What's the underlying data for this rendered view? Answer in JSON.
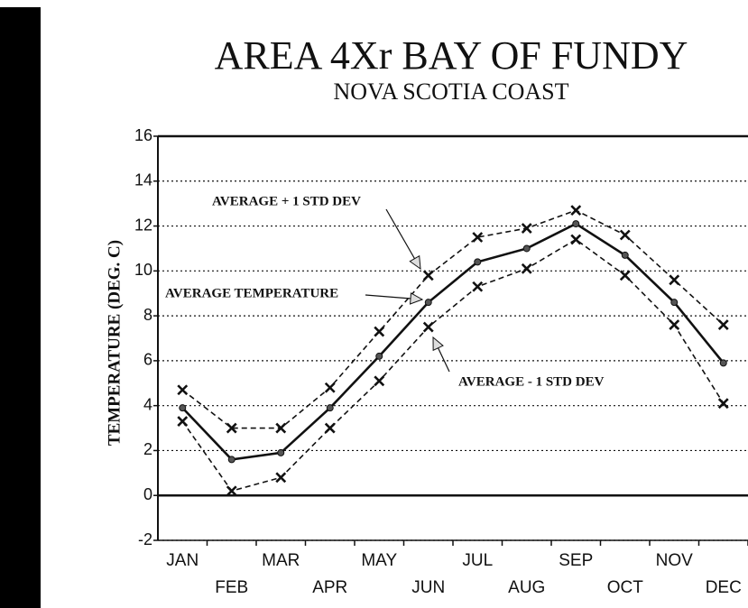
{
  "chart_data": {
    "type": "line",
    "title": "AREA 4Xr BAY OF FUNDY",
    "subtitle": "NOVA SCOTIA COAST",
    "y_label": "TEMPERATURE (DEG. C)",
    "categories": [
      "JAN",
      "FEB",
      "MAR",
      "APR",
      "MAY",
      "JUN",
      "JUL",
      "AUG",
      "SEP",
      "OCT",
      "NOV",
      "DEC"
    ],
    "series": [
      {
        "name": "AVERAGE + 1 STD DEV",
        "color": "#111111",
        "linestyle": "dashed",
        "marker": "x",
        "values": [
          4.7,
          3.0,
          3.0,
          4.8,
          7.3,
          9.8,
          11.5,
          11.9,
          12.7,
          11.6,
          9.6,
          7.6
        ]
      },
      {
        "name": "AVERAGE TEMPERATURE",
        "color": "#111111",
        "linestyle": "solid",
        "marker": "o",
        "values": [
          3.9,
          1.6,
          1.9,
          3.9,
          6.2,
          8.6,
          10.4,
          11.0,
          12.1,
          10.7,
          8.6,
          5.9
        ]
      },
      {
        "name": "AVERAGE - 1 STD DEV",
        "color": "#111111",
        "linestyle": "dashed",
        "marker": "x",
        "values": [
          3.3,
          0.2,
          0.8,
          3.0,
          5.1,
          7.5,
          9.3,
          10.1,
          11.4,
          9.8,
          7.6,
          4.1
        ]
      }
    ],
    "ylim": [
      -2,
      16
    ],
    "yticks": [
      -2,
      0,
      2,
      4,
      6,
      8,
      10,
      12,
      14,
      16
    ],
    "grid": true
  }
}
